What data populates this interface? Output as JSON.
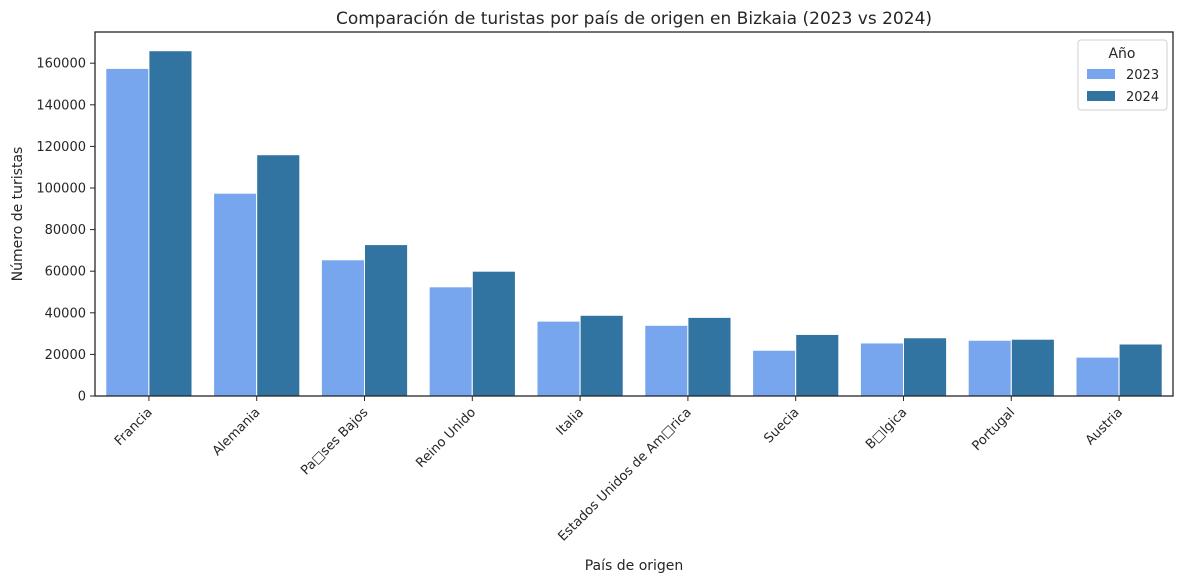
{
  "chart_data": {
    "type": "bar",
    "title": "Comparación de turistas por país de origen en Bizkaia (2023 vs 2024)",
    "xlabel": "País de origen",
    "ylabel": "Número de turistas",
    "categories": [
      "Francia",
      "Alemania",
      "Pa□ses Bajos",
      "Reino Unido",
      "Italia",
      "Estados Unidos de Am□rica",
      "Suecia",
      "B□lgica",
      "Portugal",
      "Austria"
    ],
    "series": [
      {
        "name": "2023",
        "color": "#78a6ee",
        "values": [
          157500,
          97500,
          65500,
          52500,
          36000,
          34000,
          22000,
          25500,
          26800,
          18700
        ]
      },
      {
        "name": "2024",
        "color": "#3274a1",
        "values": [
          166000,
          116000,
          72800,
          60000,
          38800,
          37800,
          29600,
          28000,
          27300,
          25000
        ]
      }
    ],
    "ylim": [
      0,
      175000
    ],
    "yticks": [
      0,
      20000,
      40000,
      60000,
      80000,
      100000,
      120000,
      140000,
      160000
    ],
    "grid": false,
    "legend": {
      "title": "Año",
      "position": "top-right"
    }
  }
}
